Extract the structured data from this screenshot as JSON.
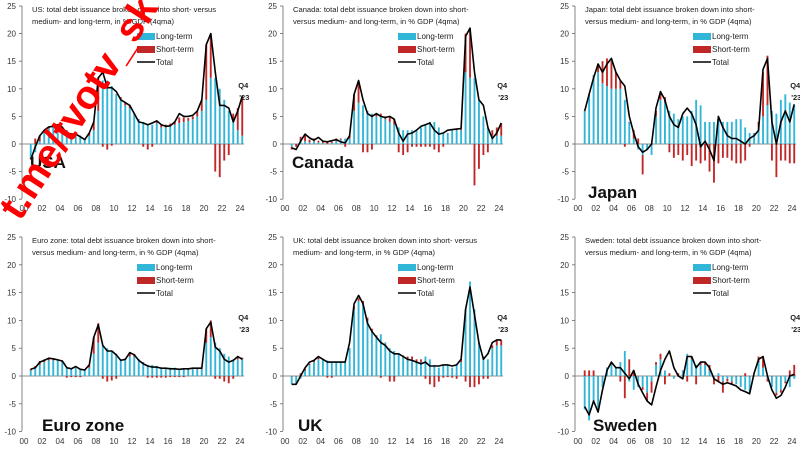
{
  "watermark": "t.me/tvotv_sk",
  "colors": {
    "long_term": "#31b6d8",
    "short_term": "#c02828",
    "total": "#000000"
  },
  "chart_data": [
    {
      "type": "bar",
      "country": "USA",
      "title_line1": "US: total debt issuance broken down into short- versus",
      "title_line2": "medium- and long-term, in % GDP (4qma)",
      "legend": [
        "Long-term",
        "Short-term",
        "Total"
      ],
      "annotation": [
        "Q4",
        "'23"
      ],
      "ylim": [
        -10,
        25
      ],
      "yticks": [
        "25",
        "20",
        "15",
        "10",
        "5",
        "0",
        "-5",
        "-10"
      ],
      "xticks": [
        "00",
        "02",
        "04",
        "06",
        "08",
        "10",
        "12",
        "14",
        "16",
        "18",
        "20",
        "22",
        "24"
      ],
      "x_start": 2000.75,
      "x_step": 0.5,
      "long_term": [
        -2.5,
        -1.5,
        0.5,
        2,
        2.8,
        3.2,
        3.3,
        3,
        2.5,
        2,
        1.8,
        1.5,
        1,
        1.5,
        2.5,
        6,
        11.5,
        11.5,
        10.5,
        9,
        8,
        7,
        6.5,
        5.5,
        4.5,
        4,
        3.5,
        3.5,
        3.8,
        3,
        3,
        3.2,
        3.5,
        3.8,
        4,
        4.2,
        4.5,
        5,
        6,
        8,
        12,
        12,
        10,
        8,
        6,
        4,
        2.5,
        1.5
      ],
      "short_term": [
        -0.3,
        1,
        1,
        0.5,
        0.3,
        0,
        0.2,
        0.2,
        0,
        0,
        0,
        0,
        0,
        0.5,
        1.5,
        6,
        -0.5,
        -1,
        -0.3,
        0,
        0.5,
        0.5,
        0.5,
        0,
        0,
        -0.5,
        -1,
        -0.5,
        0.2,
        0.5,
        0.5,
        0.5,
        0.5,
        1,
        0.8,
        0.5,
        0.5,
        1,
        2,
        10,
        8,
        -5,
        -6,
        -3,
        -2,
        1.5,
        4,
        7
      ],
      "total": [
        -2.8,
        -0.5,
        1.5,
        2.5,
        3.1,
        3.2,
        3.5,
        3,
        2,
        1.8,
        1.8,
        1.3,
        0.8,
        2,
        4,
        12,
        13,
        10.2,
        10.2,
        9.5,
        8,
        7.5,
        7,
        5.5,
        4,
        3.8,
        3.5,
        3.8,
        4.2,
        3.5,
        3.2,
        3.3,
        4,
        5.5,
        5,
        5,
        5.2,
        6,
        8,
        18,
        20,
        13,
        7,
        7,
        6.5,
        4,
        6,
        8.7
      ]
    },
    {
      "type": "bar",
      "country": "Canada",
      "title_line1": "Canada: total debt issuance broken down into short-",
      "title_line2": "versus medium- and long-term, in % GDP (4qma)",
      "legend": [
        "Long-term",
        "Short-term",
        "Total"
      ],
      "annotation": [
        "Q4",
        "'23"
      ],
      "ylim": [
        -10,
        25
      ],
      "yticks": [
        "25",
        "20",
        "15",
        "10",
        "5",
        "0",
        "-5",
        "-10"
      ],
      "xticks": [
        "00",
        "02",
        "04",
        "06",
        "08",
        "10",
        "12",
        "14",
        "16",
        "18",
        "20",
        "22",
        "24"
      ],
      "x_start": 2000.75,
      "x_step": 0.5,
      "long_term": [
        -0.5,
        0,
        0.5,
        0.5,
        0.3,
        0.5,
        0.3,
        0.2,
        0,
        0.2,
        0.5,
        0.8,
        1,
        1,
        6,
        7.5,
        7,
        6,
        5.5,
        5,
        5,
        4.5,
        4,
        3.5,
        3,
        2.5,
        2.5,
        2.5,
        2.5,
        3,
        3.5,
        4,
        4,
        3,
        2,
        2,
        2.5,
        2.5,
        2.5,
        13,
        12,
        12,
        8,
        5,
        3,
        1.5,
        1.5,
        1.5
      ],
      "short_term": [
        -0.5,
        -0.5,
        0.8,
        1.2,
        0.5,
        0.5,
        0.3,
        0.3,
        0.3,
        0.2,
        0.5,
        0.2,
        -0.5,
        0.5,
        3,
        4,
        -1.5,
        -1.5,
        -1,
        0.5,
        0.5,
        0.5,
        1,
        1,
        -1.5,
        -2,
        -1.5,
        -0.5,
        -0.5,
        -0.5,
        -0.5,
        -0.5,
        -1,
        -1.5,
        -0.5,
        0,
        0.2,
        0.2,
        0.2,
        7,
        9,
        -7.5,
        -4.5,
        -2,
        -1.5,
        1,
        1.5,
        2.3
      ],
      "total": [
        -0.7,
        -1,
        0.5,
        1.8,
        1.1,
        0.7,
        1.2,
        0.5,
        0.4,
        0.6,
        0.8,
        0.4,
        0.2,
        1.5,
        9,
        11.5,
        8,
        5.5,
        5,
        5.5,
        5,
        4.8,
        5,
        4.5,
        2,
        0.5,
        1.8,
        2,
        2.5,
        3.2,
        3.5,
        3.8,
        2.5,
        1.8,
        2,
        2.5,
        2.6,
        2.7,
        2.8,
        19.5,
        21,
        13,
        8,
        7,
        3,
        1,
        2,
        3.8
      ]
    },
    {
      "type": "bar",
      "country": "Japan",
      "title_line1": "Japan: total debt issuance broken down into short-",
      "title_line2": "versus medium- and long-term, in % GDP (4qma)",
      "legend": [
        "Long-term",
        "Short-term",
        "Total"
      ],
      "annotation": [
        "Q4",
        "'23"
      ],
      "ylim": [
        -10,
        25
      ],
      "yticks": [
        "25",
        "20",
        "15",
        "10",
        "5",
        "0",
        "-5",
        "-10"
      ],
      "xticks": [
        "00",
        "02",
        "04",
        "06",
        "08",
        "10",
        "12",
        "14",
        "16",
        "18",
        "20",
        "22",
        "24"
      ],
      "x_start": 2000.75,
      "x_step": 0.5,
      "long_term": [
        6,
        9,
        12.5,
        13,
        11,
        10.5,
        10,
        10,
        10,
        8,
        4,
        1,
        -1,
        -2,
        -1,
        -2,
        5,
        8,
        7.5,
        6,
        5.5,
        4.5,
        5,
        5,
        6,
        8,
        7,
        4,
        4,
        4,
        4.5,
        4,
        4,
        4,
        4.5,
        4.5,
        3,
        2,
        2,
        3,
        5,
        7,
        6,
        5.5,
        8,
        9,
        7.5,
        7
      ],
      "short_term": [
        0,
        0,
        0,
        1.5,
        4,
        5,
        5,
        3,
        1.5,
        -0.5,
        0,
        1.5,
        1,
        -3.5,
        0,
        0,
        1,
        1.5,
        1,
        -1.5,
        -2.5,
        -2,
        -3,
        -2,
        -4,
        -3,
        -3.5,
        -3,
        -5,
        -7,
        -3.5,
        -2.5,
        -2.5,
        -3,
        -3.5,
        -3.5,
        -3,
        -0.5,
        0,
        1,
        8,
        9,
        -3,
        -6,
        -3,
        -3,
        -3.5,
        -3.5
      ],
      "total": [
        6,
        9,
        12,
        14.5,
        13,
        14.5,
        15.5,
        13,
        11.5,
        10.5,
        5,
        2,
        -0.5,
        -1.5,
        -1,
        0,
        6.5,
        9.5,
        8,
        5,
        3.5,
        3,
        5.5,
        6.5,
        5.5,
        3.5,
        -0.5,
        0.5,
        -1,
        -3,
        5,
        3,
        1.5,
        1,
        1,
        0.5,
        0,
        1,
        1.5,
        2.5,
        13.5,
        15.5,
        4,
        0,
        4,
        6,
        4,
        7.2
      ]
    },
    {
      "type": "bar",
      "country": "Euro zone",
      "title_line1": "Euro zone: total debt issuance broken down into short-",
      "title_line2": "versus medium- and long-term, in % GDP (4qma)",
      "legend": [
        "Long-term",
        "Short-term",
        "Total"
      ],
      "annotation": [
        "Q4",
        "'23"
      ],
      "ylim": [
        -10,
        25
      ],
      "yticks": [
        "25",
        "20",
        "15",
        "10",
        "5",
        "0",
        "-5",
        "-10"
      ],
      "xticks": [
        "00",
        "02",
        "04",
        "06",
        "08",
        "10",
        "12",
        "14",
        "16",
        "18",
        "20",
        "22",
        "24"
      ],
      "x_start": 2000.75,
      "x_step": 0.5,
      "long_term": [
        1,
        1.5,
        2,
        2.5,
        2.8,
        2.8,
        2.8,
        2.5,
        1.5,
        1.2,
        1.5,
        1.2,
        1,
        1.5,
        4,
        6,
        5.5,
        5,
        4.5,
        4,
        3,
        3,
        3.5,
        3.5,
        3,
        2.5,
        2,
        2,
        1.8,
        1.5,
        1.5,
        1.5,
        1.5,
        1.2,
        1.2,
        1.2,
        1.5,
        1.2,
        1.2,
        6,
        7,
        6,
        5,
        4,
        3.5,
        3,
        3,
        3
      ],
      "short_term": [
        0.3,
        0.3,
        0.7,
        0.5,
        0.3,
        0.3,
        0.2,
        0.2,
        -0.3,
        -0.2,
        -0.2,
        -0.2,
        0,
        0.5,
        3,
        3.5,
        -0.5,
        -1,
        -0.8,
        -0.5,
        0,
        0,
        0.5,
        0.5,
        0,
        0,
        -0.3,
        -0.3,
        -0.3,
        -0.3,
        -0.3,
        -0.2,
        -0.2,
        -0.2,
        -0.2,
        0,
        0,
        0.2,
        0.2,
        2.5,
        3,
        -0.5,
        -0.5,
        -1,
        -1.3,
        -0.5,
        0.3,
        0.3
      ],
      "total": [
        1.2,
        1.5,
        2.5,
        2.8,
        3.2,
        3.1,
        2.9,
        2.7,
        1.5,
        1.3,
        1.7,
        1.2,
        1.1,
        2,
        7,
        9.2,
        5.5,
        4.5,
        4.5,
        3.8,
        2.8,
        3,
        4.2,
        3.8,
        2.8,
        2.2,
        1.8,
        1.6,
        1.6,
        1.4,
        1.4,
        1.3,
        1.3,
        1.2,
        1.3,
        1.3,
        1.4,
        1.4,
        1.4,
        8.5,
        9.7,
        5.2,
        4.5,
        3,
        2.5,
        2.8,
        3.5,
        3
      ]
    },
    {
      "type": "bar",
      "country": "UK",
      "title_line1": "UK: total debt issuance broken down into short- versus",
      "title_line2": "medium- and long-term, in % GDP (4qma)",
      "legend": [
        "Long-term",
        "Short-term",
        "Total"
      ],
      "annotation": [
        "Q4",
        "'23"
      ],
      "ylim": [
        -10,
        25
      ],
      "yticks": [
        "25",
        "20",
        "15",
        "10",
        "5",
        "0",
        "-5",
        "-10"
      ],
      "xticks": [
        "00",
        "02",
        "04",
        "06",
        "08",
        "10",
        "12",
        "14",
        "16",
        "18",
        "20",
        "22",
        "24"
      ],
      "x_start": 2000.75,
      "x_step": 0.5,
      "long_term": [
        -1.5,
        -1.5,
        -0.5,
        1,
        2,
        2.5,
        3,
        3,
        2.8,
        2.5,
        2.5,
        2.5,
        2.5,
        5,
        12,
        13.5,
        13,
        10,
        8,
        7,
        7.5,
        6,
        5,
        4.5,
        4,
        3.5,
        3,
        3,
        2.5,
        2.5,
        3.5,
        3,
        2,
        1.5,
        2,
        2,
        1.5,
        2,
        2.5,
        12,
        17,
        12,
        6,
        3.5,
        3,
        5,
        5.5,
        5.5
      ],
      "short_term": [
        0,
        0,
        0.5,
        0.3,
        0.2,
        0.3,
        0.3,
        0,
        -0.3,
        -0.3,
        0,
        0,
        0,
        0,
        0.5,
        0.5,
        0.5,
        0.5,
        0.5,
        0.3,
        -0.3,
        0,
        -1,
        -1,
        0,
        0.2,
        0.5,
        0.5,
        0.5,
        0.5,
        -0.5,
        -1.5,
        -2,
        -1,
        -0.3,
        -0.2,
        -0.3,
        -0.5,
        0.5,
        -1,
        -2,
        -2,
        -1.5,
        -0.5,
        -0.5,
        0.5,
        1,
        1
      ],
      "total": [
        -1.5,
        -1.5,
        0,
        1.5,
        2.5,
        2.8,
        3.5,
        3,
        2.5,
        2.5,
        2.5,
        2.5,
        2.5,
        6,
        13,
        14.5,
        13,
        9.5,
        8,
        7,
        6,
        5.5,
        4.5,
        4,
        4,
        3.5,
        3,
        2.8,
        2.5,
        2.2,
        2.5,
        1.8,
        1.8,
        1.8,
        2,
        2,
        1.8,
        2,
        3,
        12,
        16,
        11,
        6,
        3,
        4,
        6,
        6.5,
        6.5
      ]
    },
    {
      "type": "bar",
      "country": "Sweden",
      "title_line1": "Sweden: total debt issuance broken down into short-",
      "title_line2": "versus medium- and long-term, in % GDP (4qma)",
      "legend": [
        "Long-term",
        "Short-term",
        "Total"
      ],
      "annotation": [
        "Q4",
        "'23"
      ],
      "ylim": [
        -10,
        25
      ],
      "yticks": [
        "25",
        "20",
        "15",
        "10",
        "5",
        "0",
        "-5",
        "-10"
      ],
      "xticks": [
        "00",
        "02",
        "04",
        "06",
        "08",
        "10",
        "12",
        "14",
        "16",
        "18",
        "20",
        "22",
        "24"
      ],
      "x_start": 2000.75,
      "x_step": 0.5,
      "long_term": [
        -6,
        -8,
        -5,
        -6,
        -2,
        1.5,
        2,
        1.5,
        2.5,
        4.5,
        -1,
        -2.5,
        -2,
        -2,
        -3,
        -1,
        2,
        3,
        1,
        0,
        -0.5,
        0,
        1,
        4,
        3,
        2,
        2,
        2,
        1,
        -0.5,
        0.5,
        -1,
        -0.5,
        -1,
        -1.5,
        -2,
        -2.5,
        -3,
        0,
        2.5,
        1.5,
        -0.5,
        -2,
        -3,
        -2.5,
        -1,
        -2,
        -0.5
      ],
      "short_term": [
        1,
        1,
        1,
        0,
        0,
        0,
        0.5,
        0,
        -1,
        -4,
        3,
        1,
        0,
        -0.5,
        -1.5,
        -2,
        0.5,
        1,
        -1.5,
        0.5,
        0,
        0.5,
        0,
        -1,
        0.5,
        -1.5,
        0.5,
        0.5,
        1,
        -1,
        -1,
        -2,
        -0.5,
        -0.5,
        0,
        0,
        0.5,
        0,
        0,
        1,
        2,
        -0.5,
        0,
        -0.5,
        -0.5,
        -0.3,
        1,
        2
      ],
      "total": [
        -5.5,
        -7,
        -4.5,
        -6.5,
        -2.5,
        1,
        2.5,
        1.5,
        1.5,
        0.5,
        -0.5,
        1,
        -1.5,
        -3,
        -4.5,
        -5.2,
        -2,
        1,
        3,
        4.5,
        1.5,
        0,
        -0.5,
        3.5,
        3.5,
        1.5,
        2.5,
        2.5,
        1.5,
        -0.5,
        -1,
        -1.5,
        -1.2,
        -1.5,
        -1.8,
        -2.5,
        -2.8,
        -3.2,
        0.5,
        3,
        3.5,
        0,
        -2.5,
        -4,
        -3.5,
        -2,
        0,
        0.3
      ]
    }
  ]
}
